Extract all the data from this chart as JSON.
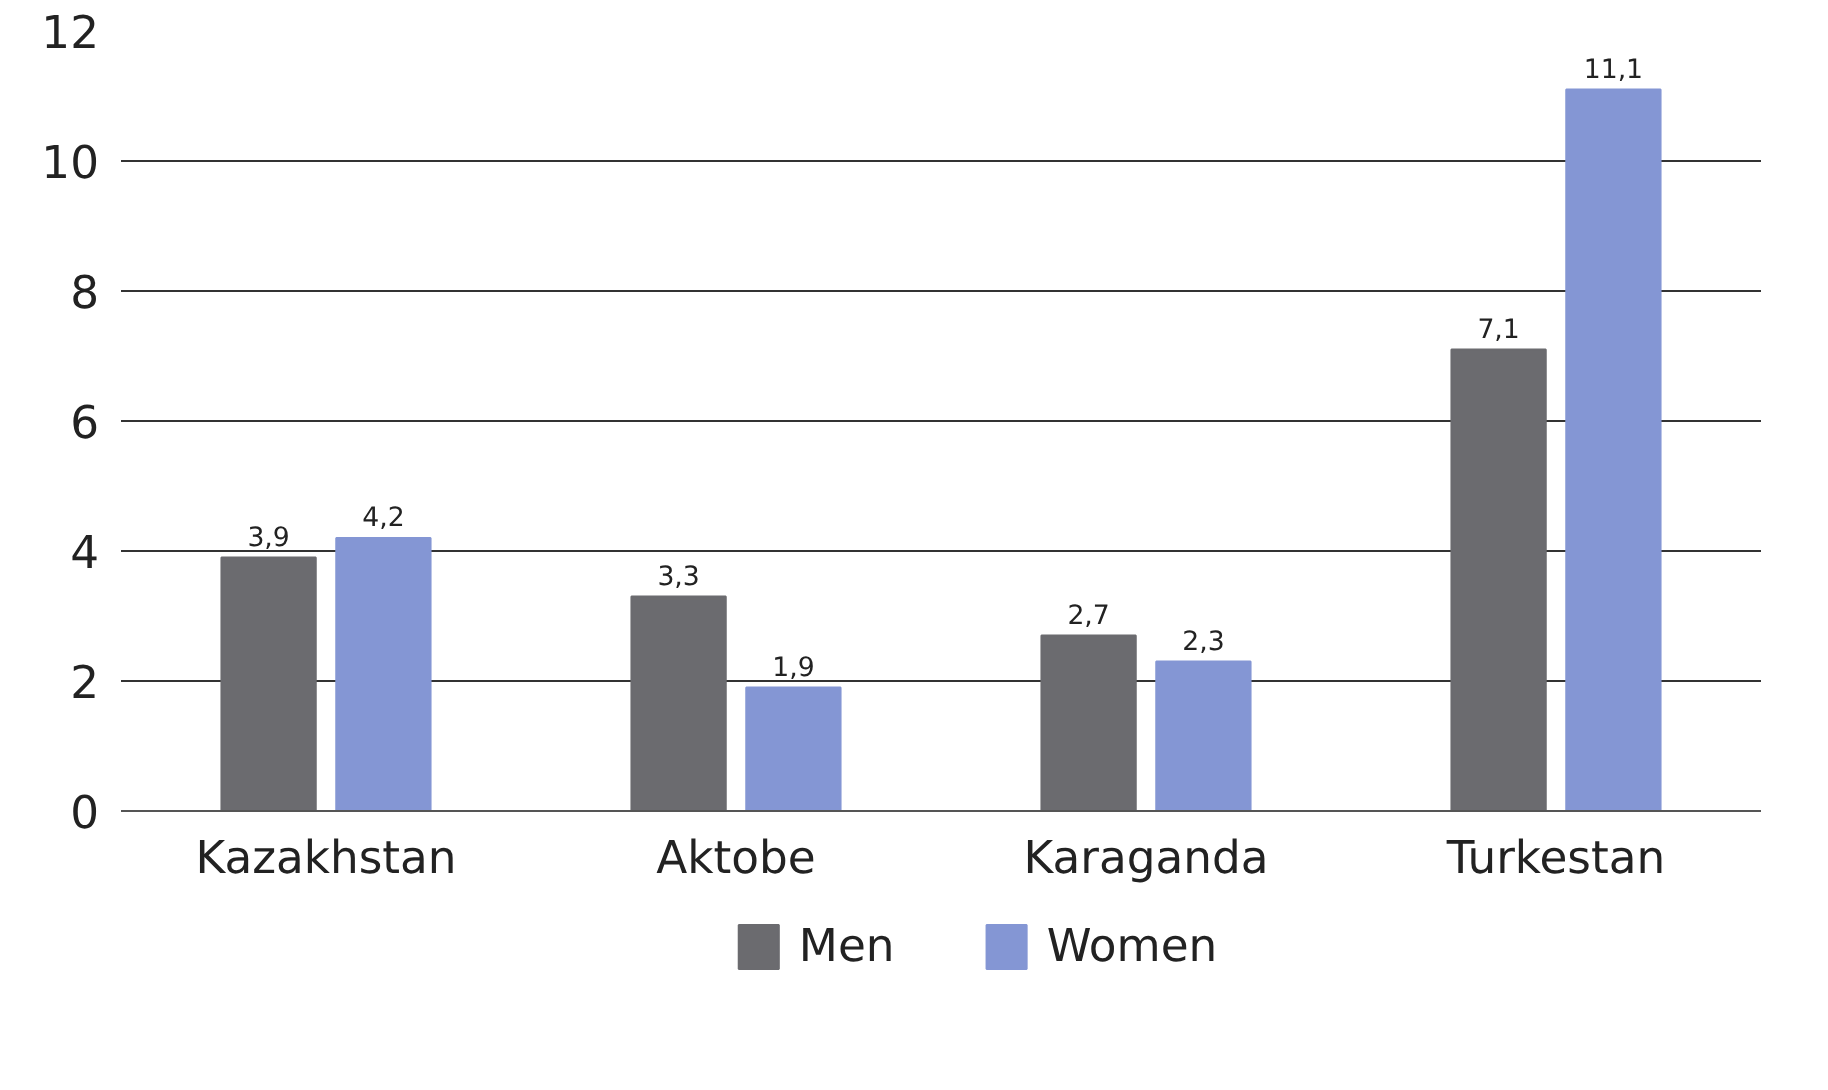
{
  "chart_data": {
    "type": "bar",
    "categories": [
      "Kazakhstan",
      "Aktobe",
      "Karaganda",
      "Turkestan"
    ],
    "series": [
      {
        "name": "Men",
        "color": "#6b6b6f",
        "values": [
          3.9,
          3.3,
          2.7,
          7.1
        ],
        "value_labels": [
          "3,9",
          "3,3",
          "2,7",
          "7,1"
        ]
      },
      {
        "name": "Women",
        "color": "#8496d4",
        "values": [
          4.2,
          1.9,
          2.3,
          11.1
        ],
        "value_labels": [
          "4,2",
          "1,9",
          "2,3",
          "11,1"
        ]
      }
    ],
    "ylim": [
      0,
      12
    ],
    "yticks": [
      0,
      2,
      4,
      6,
      8,
      10,
      12
    ],
    "grid": "y",
    "legend": "bottom"
  }
}
